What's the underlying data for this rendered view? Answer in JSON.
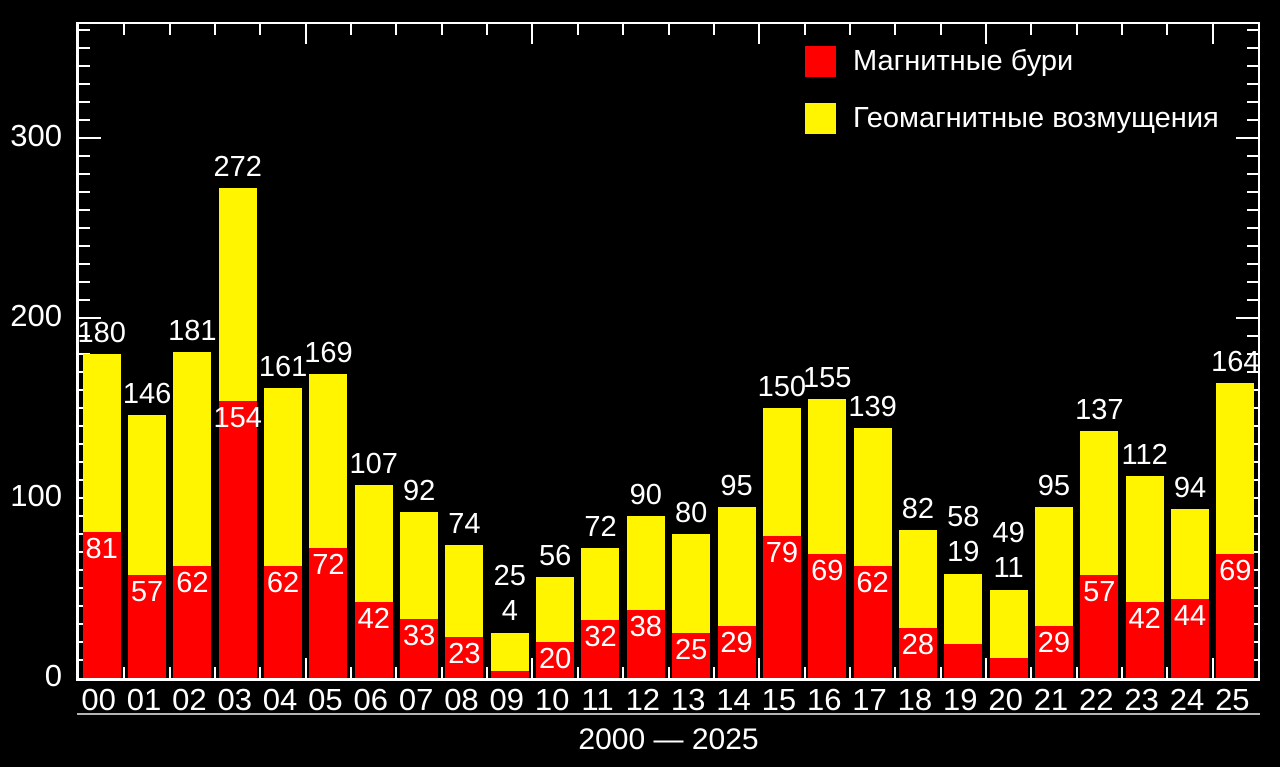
{
  "chart_data": {
    "type": "bar",
    "stacked": true,
    "categories": [
      "00",
      "01",
      "02",
      "03",
      "04",
      "05",
      "06",
      "07",
      "08",
      "09",
      "10",
      "11",
      "12",
      "13",
      "14",
      "15",
      "16",
      "17",
      "18",
      "19",
      "20",
      "21",
      "22",
      "23",
      "24",
      "25"
    ],
    "totals": [
      180,
      146,
      181,
      272,
      161,
      169,
      107,
      92,
      74,
      25,
      56,
      72,
      90,
      80,
      95,
      150,
      155,
      139,
      82,
      58,
      49,
      95,
      137,
      112,
      94,
      164
    ],
    "series": [
      {
        "name": "Магнитные бури",
        "color": "#ff0000",
        "values": [
          81,
          57,
          62,
          154,
          62,
          72,
          42,
          33,
          23,
          4,
          20,
          32,
          38,
          25,
          29,
          79,
          69,
          62,
          28,
          19,
          11,
          29,
          57,
          42,
          44,
          69
        ]
      },
      {
        "name": "Геомагнитные возмущения",
        "color": "#fff500",
        "values": [
          99,
          89,
          119,
          118,
          99,
          97,
          65,
          59,
          51,
          21,
          36,
          40,
          52,
          55,
          66,
          71,
          86,
          77,
          54,
          39,
          38,
          66,
          80,
          70,
          50,
          95
        ]
      }
    ],
    "title": "",
    "xlabel": "2000 — 2025",
    "ylabel": "",
    "ylim": [
      0,
      363
    ],
    "y_major_ticks": [
      0,
      100,
      200,
      300
    ],
    "y_minor_step": 10,
    "x_major_every": 5,
    "grid": false,
    "legend_position": "top-right",
    "background_color": "#000000",
    "text_color": "#ffffff"
  },
  "legend": {
    "items": [
      {
        "label": "Магнитные бури",
        "color": "#ff0000"
      },
      {
        "label": "Геомагнитные возмущения",
        "color": "#fff500"
      }
    ]
  },
  "x_axis": {
    "title": "2000 — 2025"
  }
}
